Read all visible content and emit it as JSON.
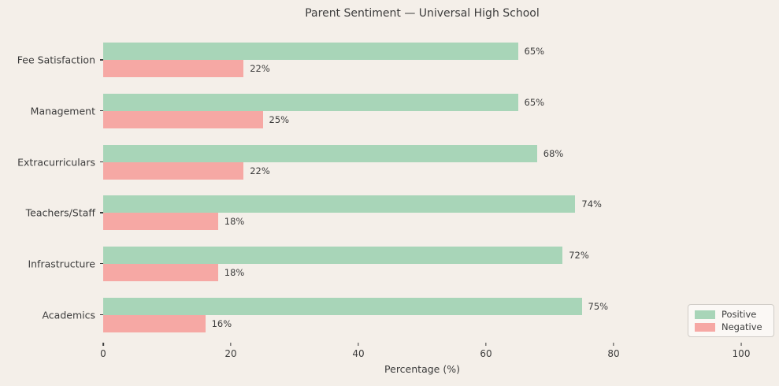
{
  "figure": {
    "background": "#f4efe9",
    "text_color": "#3c3c3c"
  },
  "chart_data": {
    "type": "bar",
    "orientation": "horizontal",
    "title": "Parent Sentiment — Universal High School",
    "xlabel": "Percentage (%)",
    "xlim": [
      0,
      100
    ],
    "xticks": [
      0,
      20,
      40,
      60,
      80,
      100
    ],
    "grid": false,
    "categories": [
      "Fee Satisfaction",
      "Management",
      "Extracurriculars",
      "Teachers/Staff",
      "Infrastructure",
      "Academics"
    ],
    "series": [
      {
        "name": "Positive",
        "color": "#a8d5b8",
        "values": [
          65,
          65,
          68,
          74,
          72,
          75
        ]
      },
      {
        "name": "Negative",
        "color": "#f6a8a4",
        "values": [
          22,
          25,
          22,
          18,
          18,
          16
        ]
      }
    ],
    "value_label_suffix": "%",
    "legend": {
      "position": "lower-right"
    }
  }
}
